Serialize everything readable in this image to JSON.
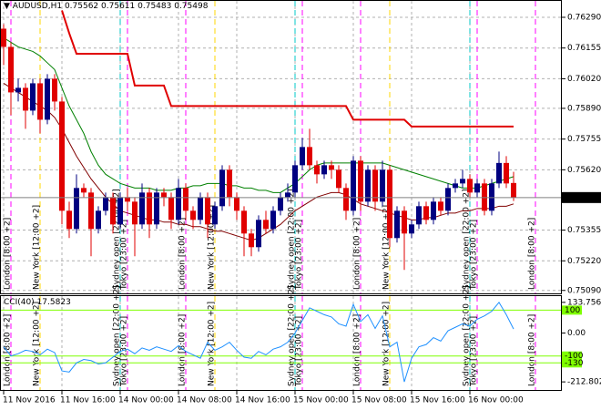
{
  "symbol": "AUDUSD,H1",
  "chart_data": [
    {
      "type": "candlestick",
      "categories": [
        "11 Nov 2016",
        null,
        null,
        null,
        null,
        null,
        null,
        null,
        "11 Nov 16:00",
        null,
        null,
        null,
        null,
        null,
        null,
        null,
        "14 Nov 00:00",
        null,
        null,
        null,
        null,
        null,
        null,
        null,
        "14 Nov 08:00",
        null,
        null,
        null,
        null,
        null,
        null,
        null,
        "14 Nov 16:00",
        null,
        null,
        null,
        null,
        null,
        null,
        null,
        "15 Nov 00:00",
        null,
        null,
        null,
        null,
        null,
        null,
        null,
        "15 Nov 08:00",
        null,
        null,
        null,
        null,
        null,
        null,
        null,
        "15 Nov 16:00",
        null,
        null,
        null,
        null,
        null,
        null,
        null,
        "16 Nov 00:00",
        null,
        null,
        null,
        null,
        null,
        null
      ],
      "ohlc": [
        [
          0.7624,
          0.7626,
          0.7608,
          0.7616
        ],
        [
          0.7616,
          0.7618,
          0.7586,
          0.7596
        ],
        [
          0.7596,
          0.7602,
          0.7592,
          0.7598
        ],
        [
          0.7598,
          0.76,
          0.758,
          0.7588
        ],
        [
          0.7588,
          0.7602,
          0.7586,
          0.76
        ],
        [
          0.76,
          0.7602,
          0.7578,
          0.7584
        ],
        [
          0.7584,
          0.7604,
          0.7582,
          0.7602
        ],
        [
          0.7602,
          0.7604,
          0.7588,
          0.7592
        ],
        [
          0.7592,
          0.7594,
          0.7538,
          0.7544
        ],
        [
          0.7544,
          0.7548,
          0.7532,
          0.7536
        ],
        [
          0.7536,
          0.756,
          0.7534,
          0.7554
        ],
        [
          0.7554,
          0.7556,
          0.755,
          0.7552
        ],
        [
          0.7552,
          0.7554,
          0.7524,
          0.7536
        ],
        [
          0.7536,
          0.7546,
          0.7534,
          0.7544
        ],
        [
          0.7544,
          0.7552,
          0.7542,
          0.755
        ],
        [
          0.755,
          0.7552,
          0.7534,
          0.7538
        ],
        [
          0.7538,
          0.7552,
          0.7536,
          0.755
        ],
        [
          0.755,
          0.7554,
          0.7544,
          0.7548
        ],
        [
          0.7548,
          0.755,
          0.7524,
          0.7538
        ],
        [
          0.7538,
          0.7556,
          0.7536,
          0.7552
        ],
        [
          0.7552,
          0.7554,
          0.7532,
          0.7538
        ],
        [
          0.7538,
          0.7554,
          0.7536,
          0.7552
        ],
        [
          0.7552,
          0.7554,
          0.7546,
          0.755
        ],
        [
          0.755,
          0.7552,
          0.7536,
          0.754
        ],
        [
          0.754,
          0.7558,
          0.7538,
          0.7554
        ],
        [
          0.7554,
          0.7556,
          0.754,
          0.7544
        ],
        [
          0.7544,
          0.7546,
          0.7536,
          0.754
        ],
        [
          0.754,
          0.7552,
          0.7538,
          0.755
        ],
        [
          0.755,
          0.7552,
          0.7532,
          0.7538
        ],
        [
          0.7538,
          0.7548,
          0.7536,
          0.7546
        ],
        [
          0.7546,
          0.7564,
          0.7544,
          0.7562
        ],
        [
          0.7562,
          0.7564,
          0.7546,
          0.755
        ],
        [
          0.755,
          0.7552,
          0.754,
          0.7544
        ],
        [
          0.7544,
          0.7546,
          0.7524,
          0.7534
        ],
        [
          0.7534,
          0.7536,
          0.7524,
          0.7528
        ],
        [
          0.7528,
          0.7542,
          0.7526,
          0.754
        ],
        [
          0.754,
          0.7544,
          0.7534,
          0.7536
        ],
        [
          0.7536,
          0.7546,
          0.7534,
          0.7544
        ],
        [
          0.7544,
          0.7552,
          0.7542,
          0.755
        ],
        [
          0.755,
          0.7556,
          0.7548,
          0.7552
        ],
        [
          0.7552,
          0.7566,
          0.755,
          0.7564
        ],
        [
          0.7564,
          0.7576,
          0.7562,
          0.7572
        ],
        [
          0.7572,
          0.758,
          0.7562,
          0.7564
        ],
        [
          0.7564,
          0.7566,
          0.7556,
          0.756
        ],
        [
          0.756,
          0.7566,
          0.7558,
          0.7564
        ],
        [
          0.7564,
          0.7566,
          0.7558,
          0.7562
        ],
        [
          0.7562,
          0.7564,
          0.7552,
          0.7554
        ],
        [
          0.7554,
          0.7556,
          0.754,
          0.7544
        ],
        [
          0.7544,
          0.7568,
          0.7542,
          0.7566
        ],
        [
          0.7566,
          0.7568,
          0.7544,
          0.7548
        ],
        [
          0.7548,
          0.7564,
          0.7546,
          0.7562
        ],
        [
          0.7562,
          0.7564,
          0.7544,
          0.7548
        ],
        [
          0.7548,
          0.7566,
          0.7546,
          0.7562
        ],
        [
          0.7562,
          0.7564,
          0.7528,
          0.7532
        ],
        [
          0.7532,
          0.7546,
          0.753,
          0.7544
        ],
        [
          0.7544,
          0.7546,
          0.7518,
          0.7534
        ],
        [
          0.7534,
          0.754,
          0.7532,
          0.7538
        ],
        [
          0.7538,
          0.7548,
          0.7536,
          0.7546
        ],
        [
          0.7546,
          0.7548,
          0.7538,
          0.754
        ],
        [
          0.754,
          0.755,
          0.7538,
          0.7548
        ],
        [
          0.7548,
          0.755,
          0.7542,
          0.7544
        ],
        [
          0.7544,
          0.7556,
          0.7542,
          0.7554
        ],
        [
          0.7554,
          0.7558,
          0.7552,
          0.7556
        ],
        [
          0.7556,
          0.7562,
          0.7554,
          0.7558
        ],
        [
          0.7558,
          0.756,
          0.755,
          0.7552
        ],
        [
          0.7552,
          0.7558,
          0.755,
          0.7556
        ],
        [
          0.7556,
          0.7558,
          0.7542,
          0.7544
        ],
        [
          0.7544,
          0.7558,
          0.7542,
          0.7556
        ],
        [
          0.7556,
          0.757,
          0.7554,
          0.7565
        ],
        [
          0.7565,
          0.7568,
          0.7554,
          0.7556
        ],
        [
          0.75562,
          0.75611,
          0.75483,
          0.75498
        ]
      ],
      "up_color": "#000080",
      "down_color": "#e00000",
      "lines": [
        {
          "color": "#e00000",
          "width": 2,
          "values": [
            null,
            null,
            null,
            null,
            null,
            null,
            null,
            null,
            0.7632,
            0.7622,
            0.7613,
            0.7613,
            0.7613,
            0.7613,
            0.7613,
            0.7613,
            0.7613,
            0.7613,
            0.7599,
            0.7599,
            0.7599,
            0.7599,
            0.7599,
            0.759,
            0.759,
            0.759,
            0.759,
            0.759,
            0.759,
            0.759,
            0.759,
            0.759,
            0.759,
            0.759,
            0.759,
            0.759,
            0.759,
            0.759,
            0.759,
            0.759,
            0.759,
            0.759,
            0.759,
            0.759,
            0.759,
            0.759,
            0.759,
            0.759,
            0.7584,
            0.7584,
            0.7584,
            0.7584,
            0.7584,
            0.7584,
            0.7584,
            0.7584,
            0.7581,
            0.7581,
            0.7581,
            0.7581,
            0.7581,
            0.7581,
            0.7581,
            0.7581,
            0.7581,
            0.7581,
            0.7581,
            0.7581,
            0.7581,
            0.7581,
            0.7581
          ]
        },
        {
          "color": "#008000",
          "width": 1,
          "values": [
            0.762,
            0.7618,
            0.7616,
            0.7615,
            0.7614,
            0.7612,
            0.7609,
            0.7606,
            0.7598,
            0.759,
            0.7584,
            0.7578,
            0.757,
            0.7564,
            0.756,
            0.7558,
            0.7556,
            0.7555,
            0.7554,
            0.7554,
            0.7554,
            0.7553,
            0.7553,
            0.7553,
            0.7554,
            0.7554,
            0.7555,
            0.7555,
            0.7556,
            0.7556,
            0.7556,
            0.7555,
            0.7555,
            0.7554,
            0.7554,
            0.7553,
            0.7553,
            0.7552,
            0.7552,
            0.7554,
            0.7556,
            0.7559,
            0.7562,
            0.7564,
            0.7565,
            0.7565,
            0.7565,
            0.7565,
            0.7565,
            0.7565,
            0.7565,
            0.7565,
            0.7565,
            0.7564,
            0.7563,
            0.7562,
            0.7561,
            0.756,
            0.7559,
            0.7558,
            0.7557,
            0.7556,
            0.7555,
            0.7554,
            0.7554,
            0.7554,
            0.7555,
            0.7556,
            0.7557,
            0.7558,
            0.7559
          ]
        },
        {
          "color": "#800000",
          "width": 1,
          "values": [
            0.76,
            0.7598,
            0.7596,
            0.7594,
            0.7592,
            0.759,
            0.7588,
            0.7585,
            0.758,
            0.7574,
            0.7568,
            0.7563,
            0.7558,
            0.7554,
            0.755,
            0.7547,
            0.7544,
            0.7543,
            0.7542,
            0.7541,
            0.754,
            0.754,
            0.7539,
            0.7539,
            0.7538,
            0.7538,
            0.7537,
            0.7537,
            0.7536,
            0.7535,
            0.7535,
            0.7534,
            0.7533,
            0.7532,
            0.7531,
            0.7532,
            0.7534,
            0.7536,
            0.7538,
            0.7541,
            0.7544,
            0.7546,
            0.7548,
            0.755,
            0.7551,
            0.7552,
            0.7552,
            0.7551,
            0.7549,
            0.7547,
            0.7546,
            0.7545,
            0.7544,
            0.7543,
            0.7542,
            0.7541,
            0.754,
            0.754,
            0.7541,
            0.7541,
            0.7542,
            0.7543,
            0.7543,
            0.7544,
            0.7544,
            0.7545,
            0.7545,
            0.7545,
            0.7546,
            0.7546,
            0.7547
          ]
        }
      ],
      "ylim": [
        0.75077,
        0.76362
      ],
      "yticks": [
        {
          "value": 0.7629,
          "label": "0.76290"
        },
        0.76155,
        {
          "value": 0.7602,
          "label": "0.76020"
        },
        {
          "value": 0.7589,
          "label": "0.75890"
        },
        0.75755,
        {
          "value": 0.7562,
          "label": "0.75620"
        },
        0.75355,
        {
          "value": 0.7522,
          "label": "0.75220"
        },
        {
          "value": 0.7509,
          "label": "0.75090"
        }
      ],
      "grid": true,
      "sessions": [
        {
          "label": "London [8:00 +2]",
          "color": "#ff00ff",
          "at": [
            1,
            25,
            49,
            73
          ]
        },
        {
          "label": "New York [12:00 +2]",
          "color": "#ffd700",
          "at": [
            5,
            29,
            53
          ]
        },
        {
          "label": "Sydney open [22:00 +2]",
          "color": "#00c8c8",
          "at": [
            16,
            40,
            64
          ]
        },
        {
          "label": "Tokyo [23:00 +2]",
          "color": "#ff00ff",
          "at": [
            17,
            41,
            65
          ]
        }
      ]
    },
    {
      "type": "line",
      "title": "CCI(40)",
      "color": "#1e90ff",
      "values": [
        -60,
        -100,
        -90,
        -75,
        -80,
        -95,
        -70,
        -85,
        -165,
        -170,
        -130,
        -115,
        -120,
        -135,
        -130,
        -105,
        -80,
        -70,
        -90,
        -65,
        -75,
        -60,
        -70,
        -80,
        -55,
        -80,
        -95,
        -110,
        -40,
        -75,
        -60,
        -40,
        -75,
        -105,
        -110,
        -80,
        -95,
        -70,
        -60,
        -40,
        0,
        55,
        110,
        95,
        80,
        70,
        40,
        30,
        125,
        50,
        80,
        20,
        75,
        -60,
        -40,
        -212.8021,
        -110,
        -60,
        -50,
        -20,
        -35,
        10,
        25,
        40,
        30,
        60,
        75,
        95,
        133.7569,
        80,
        17.5823
      ],
      "ylim": [
        -248,
        161
      ],
      "yticks": [
        133.7569,
        {
          "value": 0,
          "label": "0.00"
        },
        -212.8021
      ],
      "levels": [
        100,
        -100,
        -130
      ],
      "level_color": "#7fff00"
    }
  ]
}
